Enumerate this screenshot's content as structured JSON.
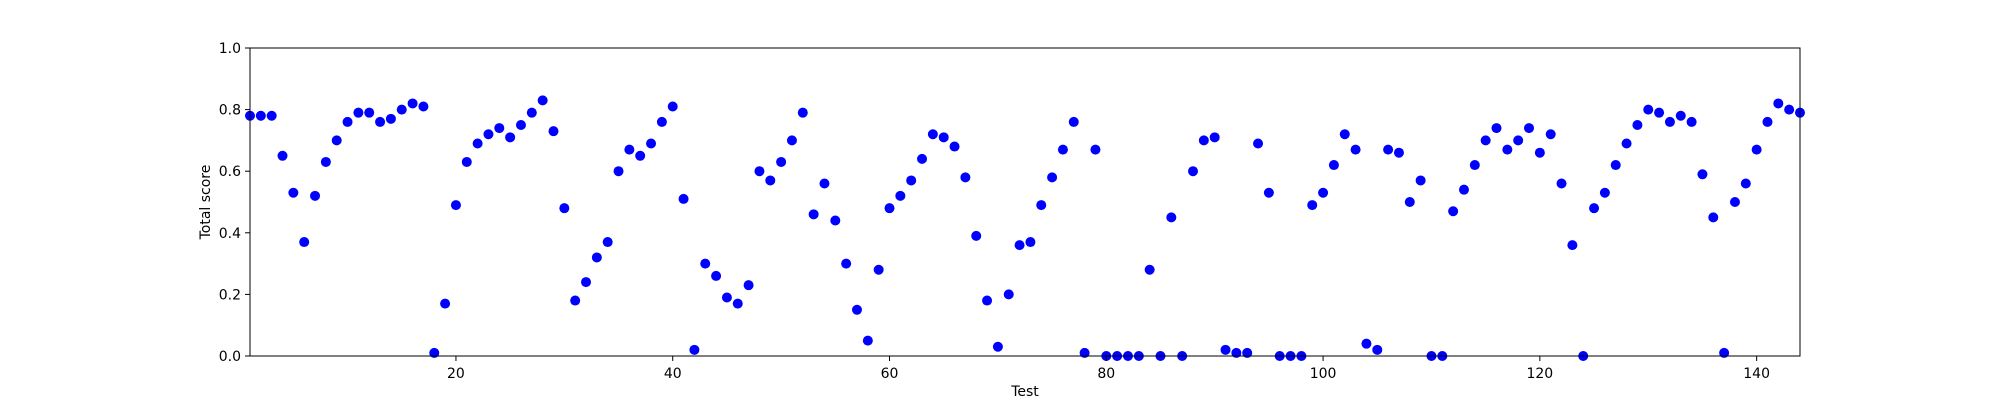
{
  "chart_data": {
    "type": "scatter",
    "title": "",
    "xlabel": "Test",
    "ylabel": "Total score",
    "xlim": [
      1,
      144
    ],
    "ylim": [
      0,
      1
    ],
    "xticks": [
      20,
      40,
      60,
      80,
      100,
      120,
      140
    ],
    "yticks": [
      "0.0",
      "0.2",
      "0.4",
      "0.6",
      "0.8",
      "1.0"
    ],
    "grid": false,
    "marker_color": "#0000ff",
    "x": [
      1,
      2,
      3,
      4,
      5,
      6,
      7,
      8,
      9,
      10,
      11,
      12,
      13,
      14,
      15,
      16,
      17,
      18,
      19,
      20,
      21,
      22,
      23,
      24,
      25,
      26,
      27,
      28,
      29,
      30,
      31,
      32,
      33,
      34,
      35,
      36,
      37,
      38,
      39,
      40,
      41,
      42,
      43,
      44,
      45,
      46,
      47,
      48,
      49,
      50,
      51,
      52,
      53,
      54,
      55,
      56,
      57,
      58,
      59,
      60,
      61,
      62,
      63,
      64,
      65,
      66,
      67,
      68,
      69,
      70,
      71,
      72,
      73,
      74,
      75,
      76,
      77,
      78,
      79,
      80,
      81,
      82,
      83,
      84,
      85,
      86,
      87,
      88,
      89,
      90,
      91,
      92,
      93,
      94,
      95,
      96,
      97,
      98,
      99,
      100,
      101,
      102,
      103,
      104,
      105,
      106,
      107,
      108,
      109,
      110,
      111,
      112,
      113,
      114,
      115,
      116,
      117,
      118,
      119,
      120,
      121,
      122,
      123,
      124,
      125,
      126,
      127,
      128,
      129,
      130,
      131,
      132,
      133,
      134,
      135,
      136,
      137,
      138,
      139,
      140,
      141,
      142,
      143,
      144
    ],
    "y": [
      0.78,
      0.78,
      0.78,
      0.65,
      0.53,
      0.37,
      0.52,
      0.63,
      0.7,
      0.76,
      0.79,
      0.79,
      0.76,
      0.77,
      0.8,
      0.82,
      0.81,
      0.01,
      0.17,
      0.49,
      0.63,
      0.69,
      0.72,
      0.74,
      0.71,
      0.75,
      0.79,
      0.83,
      0.73,
      0.48,
      0.18,
      0.24,
      0.32,
      0.37,
      0.6,
      0.67,
      0.65,
      0.69,
      0.76,
      0.81,
      0.51,
      0.02,
      0.3,
      0.26,
      0.19,
      0.17,
      0.23,
      0.6,
      0.57,
      0.63,
      0.7,
      0.79,
      0.46,
      0.56,
      0.44,
      0.3,
      0.15,
      0.05,
      0.28,
      0.48,
      0.52,
      0.57,
      0.64,
      0.72,
      0.71,
      0.68,
      0.58,
      0.39,
      0.18,
      0.03,
      0.2,
      0.36,
      0.37,
      0.49,
      0.58,
      0.67,
      0.76,
      0.01,
      0.67,
      0.0,
      0.0,
      0.0,
      0.0,
      0.28,
      0.0,
      0.45,
      0.0,
      0.6,
      0.7,
      0.71,
      0.02,
      0.01,
      0.01,
      0.69,
      0.53,
      0.0,
      0.0,
      0.0,
      0.49,
      0.53,
      0.62,
      0.72,
      0.67,
      0.04,
      0.02,
      0.67,
      0.66,
      0.5,
      0.57,
      0.0,
      0.0,
      0.47,
      0.54,
      0.62,
      0.7,
      0.74,
      0.67,
      0.7,
      0.74,
      0.66,
      0.72,
      0.56,
      0.36,
      0.0,
      0.48,
      0.53,
      0.62,
      0.69,
      0.75,
      0.8,
      0.79,
      0.76,
      0.78,
      0.76,
      0.59,
      0.45,
      0.01,
      0.5,
      0.56,
      0.67,
      0.76,
      0.82,
      0.8,
      0.79
    ]
  }
}
